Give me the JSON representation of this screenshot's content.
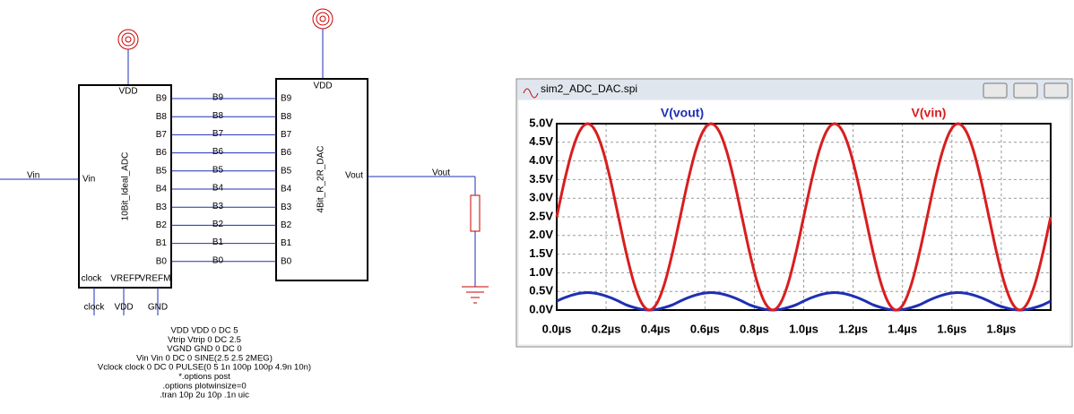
{
  "schematic": {
    "adc": {
      "name": "10Bit_Ideal_ADC",
      "supply": "VDD",
      "input": "Vin",
      "outputs": [
        "B9",
        "B8",
        "B7",
        "B6",
        "B5",
        "B4",
        "B3",
        "B2",
        "B1",
        "B0"
      ],
      "bottom_pins": [
        "clock",
        "VREFP",
        "VREFM"
      ]
    },
    "dac": {
      "name": "4Bit_R_2R_DAC",
      "supply": "VDD",
      "inputs": [
        "B9",
        "B8",
        "B7",
        "B6",
        "B5",
        "B4",
        "B3",
        "B2",
        "B1",
        "B0"
      ],
      "output": "Vout"
    },
    "nets": {
      "input": "Vin",
      "output": "Vout",
      "bus": [
        "B9",
        "B8",
        "B7",
        "B6",
        "B5",
        "B4",
        "B3",
        "B2",
        "B1",
        "B0"
      ],
      "bottom": [
        "clock",
        "VDD",
        "GND"
      ]
    },
    "netlist": [
      "VDD VDD 0 DC 5",
      "Vtrip Vtrip 0 DC 2.5",
      "VGND GND 0 DC 0",
      "Vin Vin 0 DC 0 SINE(2.5 2.5 2MEG)",
      "Vclock clock 0 DC 0 PULSE(0 5 1n 100p 100p 4.9n 10n)",
      "*.options post",
      ".options plotwinsize=0",
      ".tran 10p 2u 10p .1n uic"
    ]
  },
  "window_title": "sim2_ADC_DAC.spi",
  "chart_data": {
    "type": "line",
    "x": [
      0,
      0.03125,
      0.0625,
      0.09375,
      0.125,
      0.15625,
      0.1875,
      0.21875,
      0.25,
      0.28125,
      0.3125,
      0.34375,
      0.375,
      0.40625,
      0.4375,
      0.46875,
      0.5,
      0.53125,
      0.5625,
      0.59375,
      0.625,
      0.65625,
      0.6875,
      0.71875,
      0.75,
      0.78125,
      0.8125,
      0.84375,
      0.875,
      0.90625,
      0.9375,
      0.96875,
      1,
      1.03125,
      1.0625,
      1.09375,
      1.125,
      1.15625,
      1.1875,
      1.21875,
      1.25,
      1.28125,
      1.3125,
      1.34375,
      1.375,
      1.40625,
      1.4375,
      1.46875,
      1.5,
      1.53125,
      1.5625,
      1.59375,
      1.625,
      1.65625,
      1.6875,
      1.71875,
      1.75,
      1.78125,
      1.8125,
      1.84375,
      1.875,
      1.90625,
      1.9375,
      1.96875,
      2
    ],
    "series": [
      {
        "name": "V(vout)",
        "color": "#1f2fb4",
        "values": [
          0.24,
          0.33,
          0.4,
          0.45,
          0.47,
          0.45,
          0.4,
          0.33,
          0.24,
          0.14,
          0.07,
          0.02,
          0,
          0.02,
          0.07,
          0.14,
          0.24,
          0.33,
          0.4,
          0.45,
          0.47,
          0.45,
          0.4,
          0.33,
          0.24,
          0.14,
          0.07,
          0.02,
          0,
          0.02,
          0.07,
          0.14,
          0.24,
          0.33,
          0.4,
          0.45,
          0.47,
          0.45,
          0.4,
          0.33,
          0.24,
          0.14,
          0.07,
          0.02,
          0,
          0.02,
          0.07,
          0.14,
          0.24,
          0.33,
          0.4,
          0.45,
          0.47,
          0.45,
          0.4,
          0.33,
          0.24,
          0.14,
          0.07,
          0.02,
          0,
          0.02,
          0.07,
          0.14,
          0.24
        ]
      },
      {
        "name": "V(vin)",
        "color": "#d81e1e",
        "values": [
          2.5,
          3.46,
          4.27,
          4.81,
          5,
          4.81,
          4.27,
          3.46,
          2.5,
          1.54,
          0.73,
          0.19,
          0,
          0.19,
          0.73,
          1.54,
          2.5,
          3.46,
          4.27,
          4.81,
          5,
          4.81,
          4.27,
          3.46,
          2.5,
          1.54,
          0.73,
          0.19,
          0,
          0.19,
          0.73,
          1.54,
          2.5,
          3.46,
          4.27,
          4.81,
          5,
          4.81,
          4.27,
          3.46,
          2.5,
          1.54,
          0.73,
          0.19,
          0,
          0.19,
          0.73,
          1.54,
          2.5,
          3.46,
          4.27,
          4.81,
          5,
          4.81,
          4.27,
          3.46,
          2.5,
          1.54,
          0.73,
          0.19,
          0,
          0.19,
          0.73,
          1.54,
          2.5
        ]
      }
    ],
    "xlim": [
      0,
      2
    ],
    "xticks": [
      {
        "value": 0,
        "label": "0.0µs"
      },
      {
        "value": 0.2,
        "label": "0.2µs"
      },
      {
        "value": 0.4,
        "label": "0.4µs"
      },
      {
        "value": 0.6,
        "label": "0.6µs"
      },
      {
        "value": 0.8,
        "label": "0.8µs"
      },
      {
        "value": 1,
        "label": "1.0µs"
      },
      {
        "value": 1.2,
        "label": "1.2µs"
      },
      {
        "value": 1.4,
        "label": "1.4µs"
      },
      {
        "value": 1.6,
        "label": "1.6µs"
      },
      {
        "value": 1.8,
        "label": "1.8µs"
      }
    ],
    "ylim": [
      0,
      5
    ],
    "yticks": [
      {
        "value": 0,
        "label": "0.0V"
      },
      {
        "value": 0.5,
        "label": "0.5V"
      },
      {
        "value": 1,
        "label": "1.0V"
      },
      {
        "value": 1.5,
        "label": "1.5V"
      },
      {
        "value": 2,
        "label": "2.0V"
      },
      {
        "value": 2.5,
        "label": "2.5V"
      },
      {
        "value": 3,
        "label": "3.0V"
      },
      {
        "value": 3.5,
        "label": "3.5V"
      },
      {
        "value": 4,
        "label": "4.0V"
      },
      {
        "value": 4.5,
        "label": "4.5V"
      },
      {
        "value": 5,
        "label": "5.0V"
      }
    ],
    "grid": true
  }
}
